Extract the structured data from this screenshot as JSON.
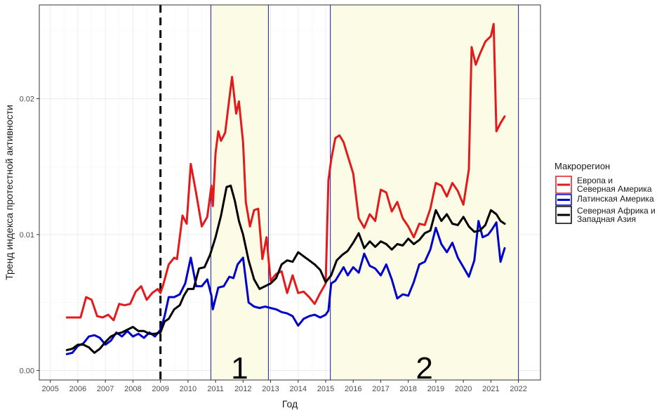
{
  "chart_data": {
    "type": "line",
    "title": "",
    "xlabel": "Год",
    "ylabel": "Тренд индекса протестной активности",
    "xlim": [
      2004.6,
      2022.8
    ],
    "ylim": [
      -0.0007,
      0.0269
    ],
    "x_ticks": [
      2005,
      2006,
      2007,
      2008,
      2009,
      2010,
      2011,
      2012,
      2013,
      2014,
      2015,
      2016,
      2017,
      2018,
      2019,
      2020,
      2021,
      2022
    ],
    "x_tick_labels": [
      "2005",
      "2006",
      "2007",
      "2008",
      "2009",
      "2010",
      "2011",
      "2012",
      "2013",
      "2014",
      "2015",
      "2016",
      "2017",
      "2018",
      "2019",
      "2020",
      "2021",
      "2022"
    ],
    "y_ticks": [
      0.0,
      0.01,
      0.02
    ],
    "y_tick_labels": [
      "0.00",
      "0.01",
      "0.02"
    ],
    "grid": true,
    "legend_title": "Макрорегион",
    "legend_position": "right",
    "dashed_vline": 2009.0,
    "periods": [
      {
        "label": "1",
        "start": 2010.83,
        "end": 2012.92
      },
      {
        "label": "2",
        "start": 2015.17,
        "end": 2022.0
      }
    ],
    "series": [
      {
        "name": [
          "Европа и",
          "Северная Америка"
        ],
        "color": "#e31a1c",
        "x": [
          2005.6,
          2005.9,
          2006.1,
          2006.3,
          2006.5,
          2006.7,
          2006.9,
          2007.1,
          2007.3,
          2007.5,
          2007.7,
          2007.9,
          2008.1,
          2008.3,
          2008.5,
          2008.7,
          2008.9,
          2009.0,
          2009.1,
          2009.3,
          2009.5,
          2009.6,
          2009.8,
          2009.95,
          2010.1,
          2010.3,
          2010.5,
          2010.7,
          2010.85,
          2010.9,
          2011.0,
          2011.1,
          2011.2,
          2011.35,
          2011.5,
          2011.6,
          2011.75,
          2011.85,
          2012.0,
          2012.1,
          2012.25,
          2012.4,
          2012.55,
          2012.7,
          2012.85,
          2013.0,
          2013.2,
          2013.4,
          2013.6,
          2013.8,
          2014.0,
          2014.2,
          2014.4,
          2014.6,
          2014.8,
          2015.0,
          2015.1,
          2015.2,
          2015.35,
          2015.5,
          2015.65,
          2015.8,
          2016.0,
          2016.2,
          2016.4,
          2016.6,
          2016.8,
          2017.0,
          2017.2,
          2017.4,
          2017.6,
          2017.8,
          2018.0,
          2018.2,
          2018.4,
          2018.6,
          2018.8,
          2019.0,
          2019.2,
          2019.4,
          2019.6,
          2019.8,
          2020.0,
          2020.2,
          2020.3,
          2020.45,
          2020.6,
          2020.8,
          2021.0,
          2021.1,
          2021.2,
          2021.35,
          2021.5
        ],
        "values": [
          0.0039,
          0.0039,
          0.0039,
          0.0054,
          0.0052,
          0.004,
          0.0039,
          0.0041,
          0.0037,
          0.0049,
          0.0048,
          0.0049,
          0.0058,
          0.0062,
          0.0052,
          0.0057,
          0.006,
          0.0057,
          0.0063,
          0.0078,
          0.0083,
          0.0082,
          0.0114,
          0.0108,
          0.0152,
          0.013,
          0.0106,
          0.0113,
          0.0136,
          0.0121,
          0.016,
          0.0176,
          0.0169,
          0.0175,
          0.02,
          0.0216,
          0.0189,
          0.0198,
          0.0168,
          0.0124,
          0.0106,
          0.0118,
          0.0119,
          0.0082,
          0.0098,
          0.0066,
          0.0071,
          0.0073,
          0.0057,
          0.007,
          0.0057,
          0.0058,
          0.0054,
          0.0049,
          0.0057,
          0.0064,
          0.014,
          0.0155,
          0.0171,
          0.0173,
          0.0168,
          0.0158,
          0.0145,
          0.0112,
          0.0105,
          0.0115,
          0.011,
          0.0133,
          0.0131,
          0.0117,
          0.0124,
          0.0112,
          0.0106,
          0.0098,
          0.0108,
          0.0107,
          0.0119,
          0.0138,
          0.0136,
          0.0128,
          0.0138,
          0.0132,
          0.0122,
          0.0148,
          0.0238,
          0.0225,
          0.0233,
          0.0242,
          0.0246,
          0.0255,
          0.0176,
          0.0182,
          0.0187
        ]
      },
      {
        "name": [
          "Латинская Америка"
        ],
        "color": "#0000cd",
        "x": [
          2005.6,
          2005.8,
          2006.0,
          2006.2,
          2006.4,
          2006.6,
          2006.8,
          2007.0,
          2007.2,
          2007.4,
          2007.6,
          2007.8,
          2008.0,
          2008.2,
          2008.4,
          2008.6,
          2008.8,
          2009.0,
          2009.15,
          2009.3,
          2009.5,
          2009.7,
          2009.9,
          2010.1,
          2010.3,
          2010.5,
          2010.7,
          2010.85,
          2010.9,
          2011.0,
          2011.1,
          2011.3,
          2011.5,
          2011.65,
          2011.8,
          2012.0,
          2012.2,
          2012.4,
          2012.6,
          2012.8,
          2013.0,
          2013.2,
          2013.4,
          2013.6,
          2013.8,
          2014.0,
          2014.2,
          2014.4,
          2014.6,
          2014.8,
          2015.0,
          2015.1,
          2015.2,
          2015.35,
          2015.5,
          2015.65,
          2015.8,
          2016.0,
          2016.2,
          2016.4,
          2016.6,
          2016.8,
          2017.0,
          2017.2,
          2017.4,
          2017.6,
          2017.8,
          2018.0,
          2018.2,
          2018.4,
          2018.6,
          2018.8,
          2019.0,
          2019.2,
          2019.4,
          2019.6,
          2019.8,
          2020.0,
          2020.2,
          2020.4,
          2020.55,
          2020.7,
          2020.9,
          2021.05,
          2021.2,
          2021.35,
          2021.5
        ],
        "values": [
          0.0012,
          0.0013,
          0.0018,
          0.002,
          0.0025,
          0.0026,
          0.0024,
          0.0019,
          0.0022,
          0.0028,
          0.0025,
          0.0029,
          0.0025,
          0.0027,
          0.0024,
          0.0028,
          0.0025,
          0.003,
          0.004,
          0.0054,
          0.0054,
          0.0056,
          0.0064,
          0.0083,
          0.0062,
          0.0062,
          0.0067,
          0.0055,
          0.0045,
          0.0053,
          0.0061,
          0.0062,
          0.0069,
          0.0068,
          0.0078,
          0.0083,
          0.005,
          0.0047,
          0.0046,
          0.0047,
          0.0046,
          0.0045,
          0.0043,
          0.0042,
          0.004,
          0.0033,
          0.0038,
          0.004,
          0.0041,
          0.0039,
          0.0041,
          0.0044,
          0.0064,
          0.0066,
          0.0071,
          0.0076,
          0.007,
          0.0076,
          0.0072,
          0.0086,
          0.0077,
          0.0075,
          0.007,
          0.0078,
          0.0067,
          0.0053,
          0.0056,
          0.0055,
          0.0065,
          0.0078,
          0.008,
          0.0089,
          0.0105,
          0.0093,
          0.0087,
          0.0094,
          0.0083,
          0.0076,
          0.0069,
          0.0081,
          0.011,
          0.0098,
          0.01,
          0.0104,
          0.0109,
          0.008,
          0.009
        ]
      },
      {
        "name": [
          "Северная Африка и",
          "Западная Азия"
        ],
        "color": "#000000",
        "x": [
          2005.6,
          2005.8,
          2006.0,
          2006.2,
          2006.4,
          2006.6,
          2006.8,
          2007.0,
          2007.2,
          2007.4,
          2007.6,
          2007.8,
          2008.0,
          2008.2,
          2008.4,
          2008.6,
          2008.8,
          2009.0,
          2009.15,
          2009.3,
          2009.5,
          2009.7,
          2009.85,
          2010.0,
          2010.2,
          2010.4,
          2010.6,
          2010.8,
          2011.0,
          2011.2,
          2011.4,
          2011.55,
          2011.7,
          2011.85,
          2012.0,
          2012.2,
          2012.4,
          2012.6,
          2012.8,
          2013.0,
          2013.2,
          2013.4,
          2013.6,
          2013.8,
          2014.0,
          2014.2,
          2014.4,
          2014.6,
          2014.8,
          2015.0,
          2015.2,
          2015.4,
          2015.6,
          2015.8,
          2016.0,
          2016.2,
          2016.4,
          2016.6,
          2016.8,
          2017.0,
          2017.2,
          2017.4,
          2017.6,
          2017.8,
          2018.0,
          2018.2,
          2018.4,
          2018.6,
          2018.8,
          2019.0,
          2019.2,
          2019.4,
          2019.6,
          2019.8,
          2020.0,
          2020.2,
          2020.4,
          2020.6,
          2020.8,
          2021.0,
          2021.2,
          2021.35,
          2021.5
        ],
        "values": [
          0.0015,
          0.0016,
          0.0019,
          0.0019,
          0.0017,
          0.0013,
          0.0016,
          0.0021,
          0.0025,
          0.0027,
          0.0028,
          0.003,
          0.0032,
          0.0029,
          0.0029,
          0.0027,
          0.0027,
          0.0028,
          0.0036,
          0.0038,
          0.0045,
          0.0048,
          0.0055,
          0.006,
          0.006,
          0.0075,
          0.0076,
          0.0085,
          0.0098,
          0.0114,
          0.0135,
          0.0136,
          0.0125,
          0.011,
          0.01,
          0.0081,
          0.0067,
          0.006,
          0.0062,
          0.0064,
          0.0068,
          0.0078,
          0.0081,
          0.008,
          0.0087,
          0.0084,
          0.0081,
          0.0078,
          0.0074,
          0.0065,
          0.007,
          0.0081,
          0.0085,
          0.0088,
          0.0094,
          0.0101,
          0.009,
          0.0095,
          0.0091,
          0.0095,
          0.0093,
          0.0089,
          0.0093,
          0.0092,
          0.0097,
          0.0093,
          0.0096,
          0.0101,
          0.0103,
          0.0118,
          0.011,
          0.0115,
          0.0108,
          0.0107,
          0.0113,
          0.0106,
          0.0102,
          0.0103,
          0.0107,
          0.0118,
          0.0115,
          0.011,
          0.0108
        ]
      }
    ]
  }
}
